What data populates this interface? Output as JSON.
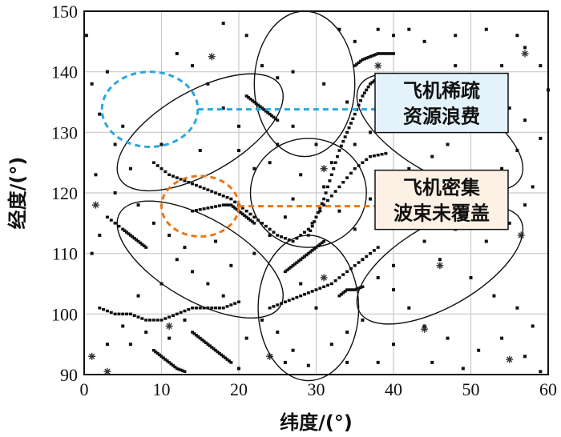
{
  "chart_data": {
    "type": "scatter",
    "title": "",
    "xlabel": "纬度/(°)",
    "ylabel": "经度/(°)",
    "xlim": [
      0,
      60
    ],
    "ylim": [
      90,
      150
    ],
    "xticks": [
      "0",
      "10",
      "20",
      "30",
      "40",
      "50",
      "60"
    ],
    "yticks": [
      "90",
      "100",
      "110",
      "120",
      "130",
      "140",
      "150"
    ],
    "grid": true,
    "beams": [
      {
        "cx": 29,
        "cy": 120,
        "rx": 7.5,
        "ry": 9,
        "angle": 0
      },
      {
        "cx": 28.5,
        "cy": 138,
        "rx": 6.5,
        "ry": 12,
        "angle": 0
      },
      {
        "cx": 29,
        "cy": 101,
        "rx": 6.5,
        "ry": 12,
        "angle": 0
      },
      {
        "cx": 15,
        "cy": 130,
        "rx": 12,
        "ry": 6.8,
        "angle": -30
      },
      {
        "cx": 46,
        "cy": 130,
        "rx": 12,
        "ry": 6.8,
        "angle": 30
      },
      {
        "cx": 15,
        "cy": 109,
        "rx": 12,
        "ry": 6.8,
        "angle": 30
      },
      {
        "cx": 46,
        "cy": 108,
        "rx": 12,
        "ry": 6.8,
        "angle": -30
      }
    ],
    "annotations": [
      {
        "label": "飞机稀疏资源浪费",
        "lines": [
          "飞机稀疏",
          "资源浪费"
        ],
        "color": "#2aa6e0",
        "fill": "#e4f3fb",
        "circle": {
          "cx": 8.5,
          "cy": 133.8,
          "r": 6.2
        },
        "leader_y": 133.8
      },
      {
        "label": "飞机密集波束未覆盖",
        "lines": [
          "飞机密集",
          "波束未覆盖"
        ],
        "color": "#e8781a",
        "fill": "#fdf0e4",
        "circle": {
          "cx": 15,
          "cy": 117.8,
          "r": 5
        },
        "leader_y": 117.8
      }
    ],
    "tracks": [
      {
        "x": [
          9,
          11,
          13,
          15,
          17,
          19,
          21,
          23,
          25,
          27,
          29,
          31,
          33,
          35,
          37,
          39
        ],
        "y": [
          125,
          123,
          122,
          121,
          120,
          119,
          117,
          115,
          113,
          112,
          114,
          118,
          121,
          124,
          126,
          126.5
        ]
      },
      {
        "x": [
          24,
          26,
          28,
          30,
          32,
          34,
          36,
          38
        ],
        "y": [
          101,
          102,
          103,
          104,
          105,
          107,
          109,
          111
        ]
      },
      {
        "x": [
          29,
          30,
          31,
          32,
          33,
          34,
          35,
          36,
          37,
          38
        ],
        "y": [
          113,
          116,
          119,
          123,
          127,
          130,
          133,
          136,
          138,
          139
        ]
      },
      {
        "x": [
          2,
          4,
          6,
          8,
          10,
          12,
          14,
          16,
          18,
          20
        ],
        "y": [
          101,
          100,
          100,
          99,
          99,
          100,
          101,
          101,
          101,
          102
        ]
      },
      {
        "x": [
          14,
          16,
          18,
          19,
          20,
          21,
          22
        ],
        "y": [
          117,
          117.5,
          118,
          118,
          117,
          116,
          115
        ]
      },
      {
        "x": [
          9,
          10,
          11,
          12,
          13
        ],
        "y": [
          94,
          93,
          92,
          91,
          90.5
        ]
      },
      {
        "x": [
          3,
          5,
          6,
          7,
          8
        ],
        "y": [
          116,
          114,
          113,
          112,
          111
        ]
      },
      {
        "x": [
          35,
          36,
          37,
          38,
          39,
          40
        ],
        "y": [
          141,
          142,
          142.5,
          143,
          143,
          143
        ]
      },
      {
        "x": [
          33,
          34,
          35,
          36
        ],
        "y": [
          103,
          104,
          104,
          104.5
        ]
      },
      {
        "x": [
          26,
          27,
          28,
          29,
          30,
          31
        ],
        "y": [
          107,
          108,
          109,
          110,
          111,
          112
        ]
      },
      {
        "x": [
          14,
          15,
          16,
          17,
          18,
          19
        ],
        "y": [
          97,
          96,
          95,
          94,
          93,
          92
        ]
      },
      {
        "x": [
          21,
          22,
          23,
          24,
          25
        ],
        "y": [
          136,
          135,
          134,
          133,
          132
        ]
      }
    ],
    "points": [
      {
        "x": 0.3,
        "y": 146
      },
      {
        "x": 18,
        "y": 148
      },
      {
        "x": 12,
        "y": 143
      },
      {
        "x": 14,
        "y": 141
      },
      {
        "x": 21,
        "y": 146
      },
      {
        "x": 16,
        "y": 138
      },
      {
        "x": 18,
        "y": 134
      },
      {
        "x": 20,
        "y": 131
      },
      {
        "x": 23,
        "y": 141
      },
      {
        "x": 25,
        "y": 139
      },
      {
        "x": 33,
        "y": 147
      },
      {
        "x": 35,
        "y": 145
      },
      {
        "x": 38,
        "y": 147
      },
      {
        "x": 40,
        "y": 146
      },
      {
        "x": 42,
        "y": 147
      },
      {
        "x": 44,
        "y": 145
      },
      {
        "x": 48,
        "y": 146
      },
      {
        "x": 52,
        "y": 147
      },
      {
        "x": 56,
        "y": 146
      },
      {
        "x": 57,
        "y": 144
      },
      {
        "x": 54,
        "y": 141
      },
      {
        "x": 52,
        "y": 138
      },
      {
        "x": 50,
        "y": 136
      },
      {
        "x": 55,
        "y": 134
      },
      {
        "x": 57,
        "y": 132
      },
      {
        "x": 59,
        "y": 129
      },
      {
        "x": 56,
        "y": 127
      },
      {
        "x": 54,
        "y": 124
      },
      {
        "x": 58,
        "y": 121
      },
      {
        "x": 52,
        "y": 122
      },
      {
        "x": 57,
        "y": 118
      },
      {
        "x": 55,
        "y": 115
      },
      {
        "x": 52,
        "y": 112
      },
      {
        "x": 48,
        "y": 114
      },
      {
        "x": 44,
        "y": 112
      },
      {
        "x": 46,
        "y": 109
      },
      {
        "x": 50,
        "y": 106
      },
      {
        "x": 53,
        "y": 103
      },
      {
        "x": 56,
        "y": 101
      },
      {
        "x": 58,
        "y": 98
      },
      {
        "x": 54,
        "y": 96
      },
      {
        "x": 51,
        "y": 94
      },
      {
        "x": 47,
        "y": 96
      },
      {
        "x": 44,
        "y": 98
      },
      {
        "x": 42,
        "y": 101
      },
      {
        "x": 40,
        "y": 104
      },
      {
        "x": 38,
        "y": 106
      },
      {
        "x": 36,
        "y": 99
      },
      {
        "x": 34,
        "y": 97
      },
      {
        "x": 32,
        "y": 95
      },
      {
        "x": 29,
        "y": 91.5
      },
      {
        "x": 27,
        "y": 94
      },
      {
        "x": 25,
        "y": 97
      },
      {
        "x": 23,
        "y": 99
      },
      {
        "x": 21,
        "y": 96
      },
      {
        "x": 18,
        "y": 103
      },
      {
        "x": 16,
        "y": 105
      },
      {
        "x": 14,
        "y": 107
      },
      {
        "x": 12,
        "y": 109
      },
      {
        "x": 10,
        "y": 105
      },
      {
        "x": 7,
        "y": 103
      },
      {
        "x": 5,
        "y": 98
      },
      {
        "x": 3,
        "y": 95
      },
      {
        "x": 1,
        "y": 110
      },
      {
        "x": 2,
        "y": 113
      },
      {
        "x": 4,
        "y": 120
      },
      {
        "x": 1.5,
        "y": 123
      },
      {
        "x": 6,
        "y": 124
      },
      {
        "x": 4,
        "y": 128
      },
      {
        "x": 2,
        "y": 133
      },
      {
        "x": 1,
        "y": 138
      },
      {
        "x": 3,
        "y": 140
      },
      {
        "x": 7,
        "y": 118
      },
      {
        "x": 9,
        "y": 115
      },
      {
        "x": 11,
        "y": 113
      },
      {
        "x": 13,
        "y": 111
      },
      {
        "x": 17,
        "y": 112
      },
      {
        "x": 19,
        "y": 108
      },
      {
        "x": 22,
        "y": 110
      },
      {
        "x": 24,
        "y": 113
      },
      {
        "x": 26,
        "y": 116
      },
      {
        "x": 27,
        "y": 119
      },
      {
        "x": 31,
        "y": 121
      },
      {
        "x": 33,
        "y": 117
      },
      {
        "x": 35,
        "y": 114
      },
      {
        "x": 37,
        "y": 119
      },
      {
        "x": 39,
        "y": 121
      },
      {
        "x": 42,
        "y": 124
      },
      {
        "x": 45,
        "y": 126
      },
      {
        "x": 47,
        "y": 128
      },
      {
        "x": 49,
        "y": 131
      },
      {
        "x": 44,
        "y": 133
      },
      {
        "x": 42,
        "y": 135
      },
      {
        "x": 40,
        "y": 132
      },
      {
        "x": 37,
        "y": 130
      },
      {
        "x": 35,
        "y": 128
      },
      {
        "x": 32,
        "y": 125
      },
      {
        "x": 30,
        "y": 128
      },
      {
        "x": 27,
        "y": 131
      },
      {
        "x": 25,
        "y": 128
      },
      {
        "x": 22,
        "y": 124
      },
      {
        "x": 20,
        "y": 127
      },
      {
        "x": 24,
        "y": 125
      },
      {
        "x": 28,
        "y": 123
      },
      {
        "x": 31,
        "y": 124
      },
      {
        "x": 11,
        "y": 96
      },
      {
        "x": 13,
        "y": 99
      },
      {
        "x": 8,
        "y": 97
      },
      {
        "x": 6,
        "y": 95
      },
      {
        "x": 38,
        "y": 92
      },
      {
        "x": 40,
        "y": 95
      },
      {
        "x": 45,
        "y": 92
      },
      {
        "x": 49,
        "y": 91
      },
      {
        "x": 57,
        "y": 93
      },
      {
        "x": 59,
        "y": 90.5
      },
      {
        "x": 26,
        "y": 92
      },
      {
        "x": 34,
        "y": 92
      },
      {
        "x": 20,
        "y": 91
      },
      {
        "x": 30,
        "y": 101
      },
      {
        "x": 28,
        "y": 105
      },
      {
        "x": 36,
        "y": 109
      },
      {
        "x": 40,
        "y": 108
      },
      {
        "x": 34,
        "y": 135
      },
      {
        "x": 31,
        "y": 138
      },
      {
        "x": 27,
        "y": 140
      },
      {
        "x": 45,
        "y": 138
      },
      {
        "x": 48,
        "y": 141
      },
      {
        "x": 60,
        "y": 137
      },
      {
        "x": 59,
        "y": 141
      },
      {
        "x": 51,
        "y": 117
      },
      {
        "x": 49,
        "y": 119
      },
      {
        "x": 10,
        "y": 128
      },
      {
        "x": 5,
        "y": 131
      },
      {
        "x": 15,
        "y": 127
      }
    ],
    "stars": [
      {
        "x": 16.5,
        "y": 142.5
      },
      {
        "x": 38,
        "y": 141
      },
      {
        "x": 57,
        "y": 143
      },
      {
        "x": 1.5,
        "y": 118
      },
      {
        "x": 31,
        "y": 124
      },
      {
        "x": 56.5,
        "y": 113
      },
      {
        "x": 46,
        "y": 108
      },
      {
        "x": 31,
        "y": 106
      },
      {
        "x": 11,
        "y": 98
      },
      {
        "x": 44,
        "y": 97.5
      },
      {
        "x": 1,
        "y": 93
      },
      {
        "x": 24,
        "y": 93
      },
      {
        "x": 55,
        "y": 92.5
      },
      {
        "x": 3,
        "y": 90.5
      }
    ]
  }
}
